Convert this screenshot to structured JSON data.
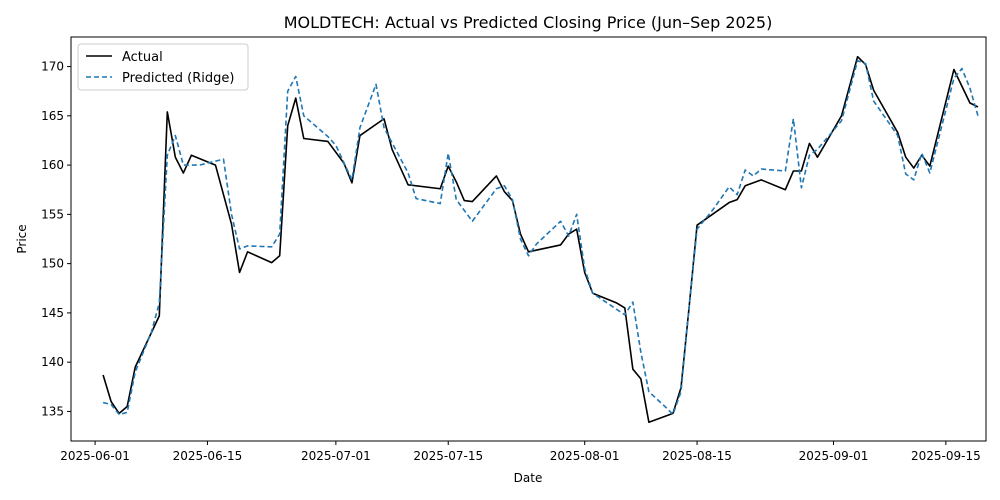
{
  "chart_data": {
    "type": "line",
    "title": "MOLDTECH: Actual vs Predicted Closing Price (Jun–Sep 2025)",
    "xlabel": "Date",
    "ylabel": "Price",
    "xlim": [
      "2025-05-29",
      "2025-09-20"
    ],
    "ylim": [
      132.0,
      173.0
    ],
    "x_ticks": [
      "2025-06-01",
      "2025-06-15",
      "2025-07-01",
      "2025-07-15",
      "2025-08-01",
      "2025-08-15",
      "2025-09-01",
      "2025-09-15"
    ],
    "y_ticks": [
      135,
      140,
      145,
      150,
      155,
      160,
      165,
      170
    ],
    "grid": false,
    "legend_position": "top-left",
    "series": [
      {
        "name": "Actual",
        "color": "#000000",
        "style": "solid",
        "points": [
          [
            "2025-06-02",
            138.7
          ],
          [
            "2025-06-03",
            136.0
          ],
          [
            "2025-06-04",
            134.8
          ],
          [
            "2025-06-05",
            135.5
          ],
          [
            "2025-06-06",
            139.5
          ],
          [
            "2025-06-09",
            144.7
          ],
          [
            "2025-06-10",
            165.4
          ],
          [
            "2025-06-11",
            160.8
          ],
          [
            "2025-06-12",
            159.2
          ],
          [
            "2025-06-13",
            161.0
          ],
          [
            "2025-06-16",
            160.0
          ],
          [
            "2025-06-18",
            154.0
          ],
          [
            "2025-06-19",
            149.1
          ],
          [
            "2025-06-20",
            151.2
          ],
          [
            "2025-06-23",
            150.1
          ],
          [
            "2025-06-24",
            150.8
          ],
          [
            "2025-06-25",
            164.0
          ],
          [
            "2025-06-26",
            166.8
          ],
          [
            "2025-06-27",
            162.7
          ],
          [
            "2025-06-30",
            162.4
          ],
          [
            "2025-07-02",
            160.2
          ],
          [
            "2025-07-03",
            158.2
          ],
          [
            "2025-07-04",
            163.0
          ],
          [
            "2025-07-07",
            164.7
          ],
          [
            "2025-07-08",
            161.6
          ],
          [
            "2025-07-10",
            158.0
          ],
          [
            "2025-07-14",
            157.6
          ],
          [
            "2025-07-15",
            159.9
          ],
          [
            "2025-07-16",
            158.3
          ],
          [
            "2025-07-17",
            156.4
          ],
          [
            "2025-07-18",
            156.3
          ],
          [
            "2025-07-21",
            158.9
          ],
          [
            "2025-07-22",
            157.3
          ],
          [
            "2025-07-23",
            156.4
          ],
          [
            "2025-07-24",
            153.0
          ],
          [
            "2025-07-25",
            151.2
          ],
          [
            "2025-07-29",
            151.9
          ],
          [
            "2025-07-30",
            153.0
          ],
          [
            "2025-07-31",
            153.5
          ],
          [
            "2025-08-01",
            149.1
          ],
          [
            "2025-08-02",
            147.0
          ],
          [
            "2025-08-05",
            146.0
          ],
          [
            "2025-08-06",
            145.5
          ],
          [
            "2025-08-07",
            139.3
          ],
          [
            "2025-08-08",
            138.3
          ],
          [
            "2025-08-09",
            133.9
          ],
          [
            "2025-08-12",
            134.8
          ],
          [
            "2025-08-13",
            137.4
          ],
          [
            "2025-08-14",
            145.5
          ],
          [
            "2025-08-15",
            153.9
          ],
          [
            "2025-08-19",
            156.2
          ],
          [
            "2025-08-20",
            156.5
          ],
          [
            "2025-08-21",
            157.9
          ],
          [
            "2025-08-23",
            158.5
          ],
          [
            "2025-08-26",
            157.5
          ],
          [
            "2025-08-27",
            159.4
          ],
          [
            "2025-08-28",
            159.4
          ],
          [
            "2025-08-29",
            162.2
          ],
          [
            "2025-08-30",
            160.8
          ],
          [
            "2025-09-02",
            165.0
          ],
          [
            "2025-09-04",
            171.0
          ],
          [
            "2025-09-05",
            170.2
          ],
          [
            "2025-09-06",
            167.6
          ],
          [
            "2025-09-09",
            163.3
          ],
          [
            "2025-09-10",
            160.8
          ],
          [
            "2025-09-11",
            159.7
          ],
          [
            "2025-09-12",
            161.0
          ],
          [
            "2025-09-13",
            159.9
          ],
          [
            "2025-09-16",
            169.7
          ],
          [
            "2025-09-17",
            168.0
          ],
          [
            "2025-09-18",
            166.3
          ],
          [
            "2025-09-19",
            165.9
          ]
        ]
      },
      {
        "name": "Predicted (Ridge)",
        "color": "#1f77b4",
        "style": "dashed",
        "points": [
          [
            "2025-06-02",
            135.9
          ],
          [
            "2025-06-03",
            135.7
          ],
          [
            "2025-06-04",
            134.7
          ],
          [
            "2025-06-05",
            134.9
          ],
          [
            "2025-06-06",
            139.0
          ],
          [
            "2025-06-08",
            143.0
          ],
          [
            "2025-06-09",
            146.0
          ],
          [
            "2025-06-10",
            161.0
          ],
          [
            "2025-06-11",
            163.0
          ],
          [
            "2025-06-12",
            160.0
          ],
          [
            "2025-06-14",
            160.0
          ],
          [
            "2025-06-17",
            160.6
          ],
          [
            "2025-06-18",
            155.0
          ],
          [
            "2025-06-19",
            151.5
          ],
          [
            "2025-06-20",
            151.8
          ],
          [
            "2025-06-23",
            151.7
          ],
          [
            "2025-06-24",
            153.0
          ],
          [
            "2025-06-25",
            167.5
          ],
          [
            "2025-06-26",
            169.0
          ],
          [
            "2025-06-27",
            165.0
          ],
          [
            "2025-06-30",
            162.9
          ],
          [
            "2025-07-01",
            162.0
          ],
          [
            "2025-07-03",
            158.5
          ],
          [
            "2025-07-04",
            163.8
          ],
          [
            "2025-07-06",
            168.2
          ],
          [
            "2025-07-07",
            163.8
          ],
          [
            "2025-07-10",
            159.2
          ],
          [
            "2025-07-11",
            156.6
          ],
          [
            "2025-07-14",
            156.1
          ],
          [
            "2025-07-15",
            161.2
          ],
          [
            "2025-07-16",
            156.5
          ],
          [
            "2025-07-18",
            154.3
          ],
          [
            "2025-07-21",
            157.6
          ],
          [
            "2025-07-22",
            157.9
          ],
          [
            "2025-07-23",
            156.5
          ],
          [
            "2025-07-24",
            152.5
          ],
          [
            "2025-07-25",
            150.8
          ],
          [
            "2025-07-26",
            152.0
          ],
          [
            "2025-07-29",
            154.3
          ],
          [
            "2025-07-30",
            152.8
          ],
          [
            "2025-07-31",
            155.0
          ],
          [
            "2025-08-01",
            149.5
          ],
          [
            "2025-08-02",
            147.0
          ],
          [
            "2025-08-06",
            144.8
          ],
          [
            "2025-08-07",
            146.1
          ],
          [
            "2025-08-08",
            141.0
          ],
          [
            "2025-08-09",
            137.0
          ],
          [
            "2025-08-11",
            135.5
          ],
          [
            "2025-08-12",
            134.7
          ],
          [
            "2025-08-13",
            137.0
          ],
          [
            "2025-08-14",
            145.5
          ],
          [
            "2025-08-15",
            153.5
          ],
          [
            "2025-08-17",
            155.5
          ],
          [
            "2025-08-19",
            157.8
          ],
          [
            "2025-08-20",
            157.0
          ],
          [
            "2025-08-21",
            159.5
          ],
          [
            "2025-08-22",
            158.9
          ],
          [
            "2025-08-23",
            159.6
          ],
          [
            "2025-08-26",
            159.4
          ],
          [
            "2025-08-27",
            164.7
          ],
          [
            "2025-08-28",
            157.7
          ],
          [
            "2025-08-29",
            161.0
          ],
          [
            "2025-08-30",
            161.6
          ],
          [
            "2025-09-02",
            164.5
          ],
          [
            "2025-09-04",
            170.6
          ],
          [
            "2025-09-05",
            170.3
          ],
          [
            "2025-09-06",
            166.5
          ],
          [
            "2025-09-09",
            163.0
          ],
          [
            "2025-09-10",
            159.1
          ],
          [
            "2025-09-11",
            158.5
          ],
          [
            "2025-09-12",
            161.2
          ],
          [
            "2025-09-13",
            159.2
          ],
          [
            "2025-09-16",
            168.8
          ],
          [
            "2025-09-17",
            169.8
          ],
          [
            "2025-09-18",
            167.8
          ],
          [
            "2025-09-19",
            165.0
          ]
        ]
      }
    ]
  }
}
